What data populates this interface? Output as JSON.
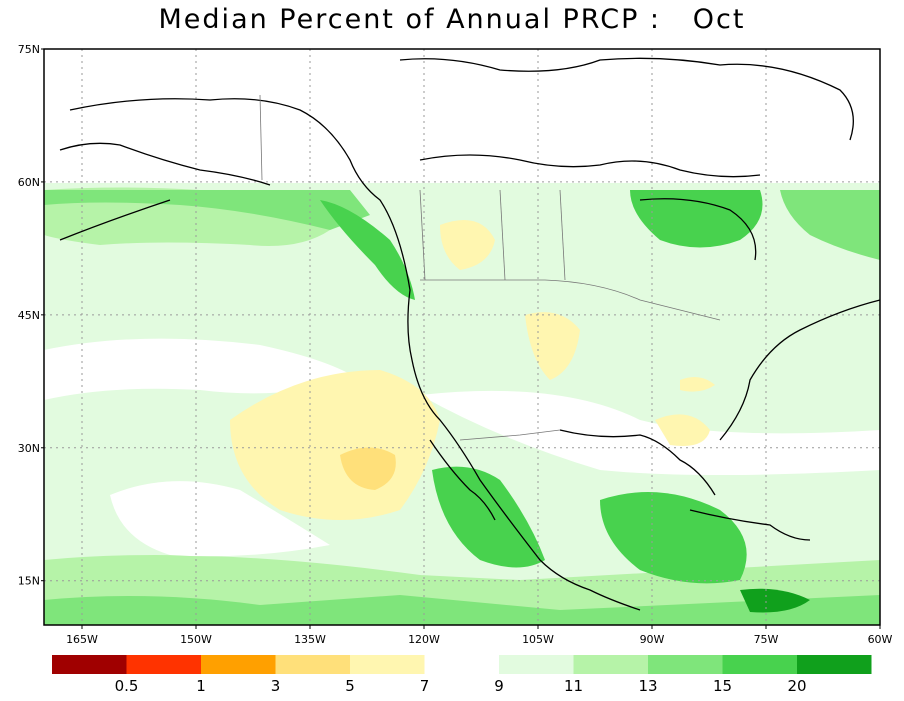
{
  "title": "Median Percent of Annual PRCP :   Oct",
  "map": {
    "lat_labels": [
      {
        "label": "75N",
        "lat": 75
      },
      {
        "label": "60N",
        "lat": 60
      },
      {
        "label": "45N",
        "lat": 45
      },
      {
        "label": "30N",
        "lat": 30
      },
      {
        "label": "15N",
        "lat": 15
      }
    ],
    "lon_labels": [
      {
        "label": "165W",
        "lon": -165
      },
      {
        "label": "150W",
        "lon": -150
      },
      {
        "label": "135W",
        "lon": -135
      },
      {
        "label": "120W",
        "lon": -120
      },
      {
        "label": "105W",
        "lon": -105
      },
      {
        "label": "90W",
        "lon": -90
      },
      {
        "label": "75W",
        "lon": -75
      },
      {
        "label": "60W",
        "lon": -60
      }
    ],
    "extent": {
      "lon_min": -170,
      "lon_max": -60,
      "lat_min": 10,
      "lat_max": 75
    }
  },
  "legend": {
    "colors": [
      "#a00000",
      "#ff3300",
      "#ffa000",
      "#ffe07a",
      "#fff6b0",
      "#ffffff",
      "#e2fbdf",
      "#b6f3a8",
      "#7fe57b",
      "#48d24e",
      "#10a01c"
    ],
    "labels": [
      {
        "text": "0.5",
        "boundary": 1
      },
      {
        "text": "1",
        "boundary": 2
      },
      {
        "text": "3",
        "boundary": 3
      },
      {
        "text": "5",
        "boundary": 4
      },
      {
        "text": "7",
        "boundary": 5
      },
      {
        "text": "9",
        "boundary": 6
      },
      {
        "text": "11",
        "boundary": 7
      },
      {
        "text": "13",
        "boundary": 8
      },
      {
        "text": "15",
        "boundary": 9
      },
      {
        "text": "20",
        "boundary": 10
      }
    ]
  }
}
